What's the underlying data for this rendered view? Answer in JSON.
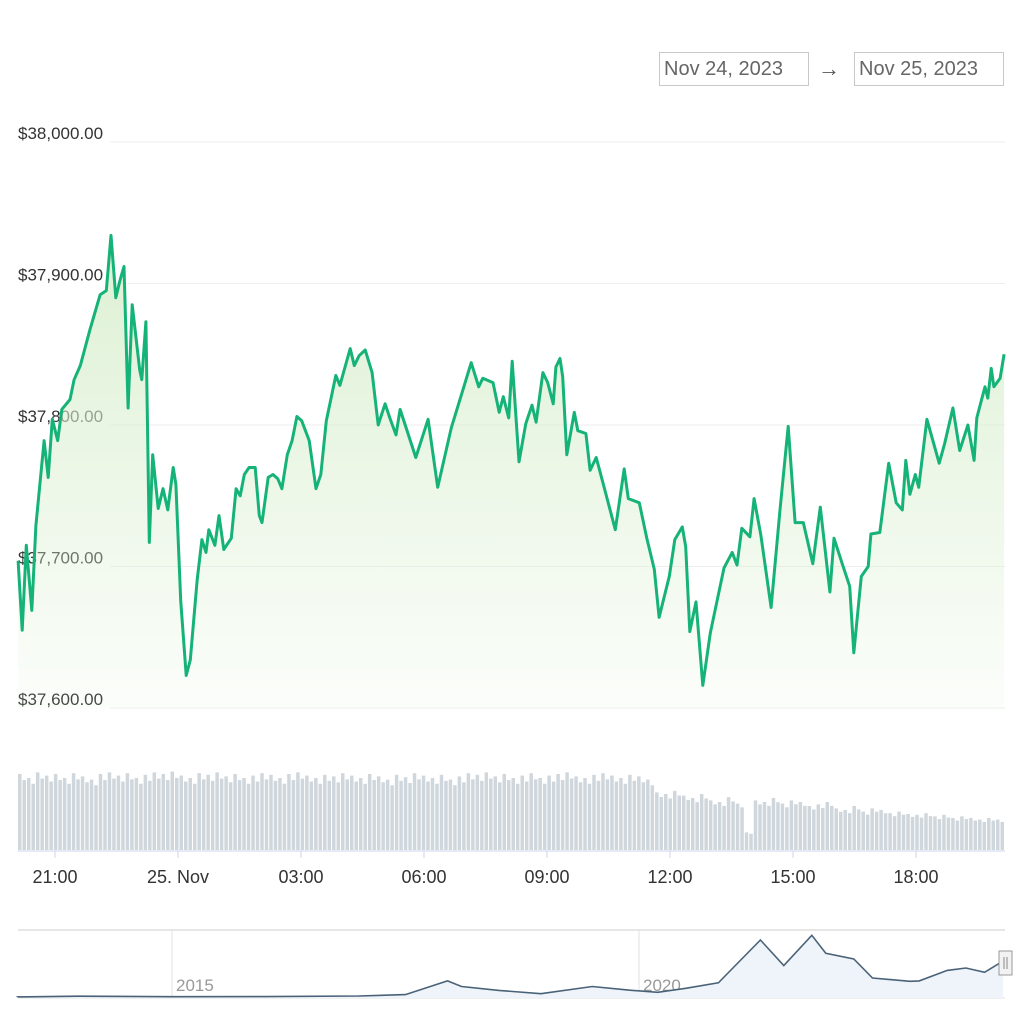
{
  "date_range": {
    "from": "Nov 24, 2023",
    "separator": "→",
    "to": "Nov 25, 2023"
  },
  "colors": {
    "line": "#16b378",
    "area_top": "#d9efcf",
    "volume": "#cfd6dc",
    "navigator_line": "#4a6278",
    "navigator_fill": "#eef4f9"
  },
  "chart_data": {
    "type": "line",
    "title": "",
    "xlabel": "",
    "ylabel": "",
    "ylim": [
      37600,
      38000
    ],
    "grid": true,
    "y_ticks": [
      "$37,600.00",
      "$37,700.00",
      "$37,800.00",
      "$37,900.00",
      "$38,000.00"
    ],
    "y_tick_values": [
      37600,
      37700,
      37800,
      37900,
      38000
    ],
    "x_ticks": [
      "21:00",
      "25. Nov",
      "03:00",
      "06:00",
      "09:00",
      "12:00",
      "15:00",
      "18:00"
    ],
    "x_tick_times": [
      "2023-11-24T21:00",
      "2023-11-25T00:00",
      "2023-11-25T03:00",
      "2023-11-25T06:00",
      "2023-11-25T09:00",
      "2023-11-25T12:00",
      "2023-11-25T15:00",
      "2023-11-25T18:00"
    ],
    "series": [
      {
        "points": [
          [
            "2023-11-24T20:06",
            37704
          ],
          [
            "2023-11-24T20:12",
            37655
          ],
          [
            "2023-11-24T20:18",
            37715
          ],
          [
            "2023-11-24T20:26",
            37669
          ],
          [
            "2023-11-24T20:32",
            37729
          ],
          [
            "2023-11-24T20:44",
            37789
          ],
          [
            "2023-11-24T20:50",
            37763
          ],
          [
            "2023-11-24T20:56",
            37804
          ],
          [
            "2023-11-24T21:04",
            37789
          ],
          [
            "2023-11-24T21:10",
            37811
          ],
          [
            "2023-11-24T21:22",
            37818
          ],
          [
            "2023-11-24T21:28",
            37832
          ],
          [
            "2023-11-24T21:37",
            37842
          ],
          [
            "2023-11-24T21:51",
            37867
          ],
          [
            "2023-11-24T22:06",
            37892
          ],
          [
            "2023-11-24T22:15",
            37895
          ],
          [
            "2023-11-24T22:22",
            37934
          ],
          [
            "2023-11-24T22:29",
            37890
          ],
          [
            "2023-11-24T22:35",
            37902
          ],
          [
            "2023-11-24T22:41",
            37912
          ],
          [
            "2023-11-24T22:47",
            37812
          ],
          [
            "2023-11-24T22:53",
            37885
          ],
          [
            "2023-11-24T23:04",
            37839
          ],
          [
            "2023-11-24T23:07",
            37832
          ],
          [
            "2023-11-24T23:13",
            37873
          ],
          [
            "2023-11-24T23:18",
            37717
          ],
          [
            "2023-11-24T23:23",
            37779
          ],
          [
            "2023-11-24T23:31",
            37741
          ],
          [
            "2023-11-24T23:38",
            37755
          ],
          [
            "2023-11-24T23:45",
            37740
          ],
          [
            "2023-11-24T23:53",
            37770
          ],
          [
            "2023-11-24T23:57",
            37758
          ],
          [
            "2023-11-25T00:04",
            37676
          ],
          [
            "2023-11-25T00:12",
            37623
          ],
          [
            "2023-11-25T00:18",
            37634
          ],
          [
            "2023-11-25T00:28",
            37690
          ],
          [
            "2023-11-25T00:35",
            37719
          ],
          [
            "2023-11-25T00:41",
            37710
          ],
          [
            "2023-11-25T00:45",
            37726
          ],
          [
            "2023-11-25T00:54",
            37715
          ],
          [
            "2023-11-25T01:00",
            37736
          ],
          [
            "2023-11-25T01:07",
            37712
          ],
          [
            "2023-11-25T01:18",
            37720
          ],
          [
            "2023-11-25T01:25",
            37755
          ],
          [
            "2023-11-25T01:31",
            37750
          ],
          [
            "2023-11-25T01:37",
            37765
          ],
          [
            "2023-11-25T01:44",
            37770
          ],
          [
            "2023-11-25T01:53",
            37770
          ],
          [
            "2023-11-25T01:59",
            37736
          ],
          [
            "2023-11-25T02:03",
            37731
          ],
          [
            "2023-11-25T02:12",
            37763
          ],
          [
            "2023-11-25T02:19",
            37765
          ],
          [
            "2023-11-25T02:26",
            37762
          ],
          [
            "2023-11-25T02:32",
            37755
          ],
          [
            "2023-11-25T02:40",
            37779
          ],
          [
            "2023-11-25T02:47",
            37789
          ],
          [
            "2023-11-25T02:54",
            37806
          ],
          [
            "2023-11-25T03:01",
            37803
          ],
          [
            "2023-11-25T03:12",
            37789
          ],
          [
            "2023-11-25T03:22",
            37755
          ],
          [
            "2023-11-25T03:29",
            37765
          ],
          [
            "2023-11-25T03:37",
            37803
          ],
          [
            "2023-11-25T03:44",
            37819
          ],
          [
            "2023-11-25T03:51",
            37835
          ],
          [
            "2023-11-25T03:57",
            37828
          ],
          [
            "2023-11-25T04:12",
            37854
          ],
          [
            "2023-11-25T04:18",
            37842
          ],
          [
            "2023-11-25T04:25",
            37849
          ],
          [
            "2023-11-25T04:34",
            37853
          ],
          [
            "2023-11-25T04:44",
            37837
          ],
          [
            "2023-11-25T04:53",
            37800
          ],
          [
            "2023-11-25T05:03",
            37815
          ],
          [
            "2023-11-25T05:10",
            37805
          ],
          [
            "2023-11-25T05:19",
            37793
          ],
          [
            "2023-11-25T05:25",
            37811
          ],
          [
            "2023-11-25T05:48",
            37777
          ],
          [
            "2023-11-25T06:06",
            37804
          ],
          [
            "2023-11-25T06:20",
            37756
          ],
          [
            "2023-11-25T06:40",
            37798
          ],
          [
            "2023-11-25T07:09",
            37844
          ],
          [
            "2023-11-25T07:20",
            37827
          ],
          [
            "2023-11-25T07:26",
            37833
          ],
          [
            "2023-11-25T07:41",
            37830
          ],
          [
            "2023-11-25T07:50",
            37809
          ],
          [
            "2023-11-25T07:56",
            37820
          ],
          [
            "2023-11-25T08:04",
            37805
          ],
          [
            "2023-11-25T08:09",
            37845
          ],
          [
            "2023-11-25T08:19",
            37774
          ],
          [
            "2023-11-25T08:29",
            37801
          ],
          [
            "2023-11-25T08:38",
            37814
          ],
          [
            "2023-11-25T08:44",
            37802
          ],
          [
            "2023-11-25T08:54",
            37837
          ],
          [
            "2023-11-25T09:01",
            37830
          ],
          [
            "2023-11-25T09:09",
            37815
          ],
          [
            "2023-11-25T09:13",
            37841
          ],
          [
            "2023-11-25T09:19",
            37847
          ],
          [
            "2023-11-25T09:23",
            37834
          ],
          [
            "2023-11-25T09:29",
            37779
          ],
          [
            "2023-11-25T09:40",
            37809
          ],
          [
            "2023-11-25T09:45",
            37796
          ],
          [
            "2023-11-25T09:57",
            37794
          ],
          [
            "2023-11-25T10:03",
            37768
          ],
          [
            "2023-11-25T10:12",
            37777
          ],
          [
            "2023-11-25T10:22",
            37759
          ],
          [
            "2023-11-25T10:40",
            37726
          ],
          [
            "2023-11-25T10:53",
            37769
          ],
          [
            "2023-11-25T10:59",
            37748
          ],
          [
            "2023-11-25T11:15",
            37745
          ],
          [
            "2023-11-25T11:26",
            37720
          ],
          [
            "2023-11-25T11:37",
            37698
          ],
          [
            "2023-11-25T11:44",
            37664
          ],
          [
            "2023-11-25T11:59",
            37693
          ],
          [
            "2023-11-25T12:07",
            37719
          ],
          [
            "2023-11-25T12:18",
            37728
          ],
          [
            "2023-11-25T12:23",
            37714
          ],
          [
            "2023-11-25T12:29",
            37654
          ],
          [
            "2023-11-25T12:38",
            37675
          ],
          [
            "2023-11-25T12:48",
            37616
          ],
          [
            "2023-11-25T12:59",
            37653
          ],
          [
            "2023-11-25T13:19",
            37699
          ],
          [
            "2023-11-25T13:31",
            37710
          ],
          [
            "2023-11-25T13:38",
            37701
          ],
          [
            "2023-11-25T13:45",
            37727
          ],
          [
            "2023-11-25T13:57",
            37721
          ],
          [
            "2023-11-25T14:03",
            37748
          ],
          [
            "2023-11-25T14:13",
            37722
          ],
          [
            "2023-11-25T14:28",
            37671
          ],
          [
            "2023-11-25T14:41",
            37740
          ],
          [
            "2023-11-25T14:53",
            37799
          ],
          [
            "2023-11-25T15:03",
            37731
          ],
          [
            "2023-11-25T15:15",
            37731
          ],
          [
            "2023-11-25T15:29",
            37702
          ],
          [
            "2023-11-25T15:40",
            37742
          ],
          [
            "2023-11-25T15:54",
            37682
          ],
          [
            "2023-11-25T16:00",
            37720
          ],
          [
            "2023-11-25T16:12",
            37702
          ],
          [
            "2023-11-25T16:23",
            37686
          ],
          [
            "2023-11-25T16:29",
            37639
          ],
          [
            "2023-11-25T16:40",
            37693
          ],
          [
            "2023-11-25T16:50",
            37700
          ],
          [
            "2023-11-25T16:54",
            37723
          ],
          [
            "2023-11-25T17:07",
            37724
          ],
          [
            "2023-11-25T17:20",
            37773
          ],
          [
            "2023-11-25T17:31",
            37745
          ],
          [
            "2023-11-25T17:40",
            37740
          ],
          [
            "2023-11-25T17:45",
            37775
          ],
          [
            "2023-11-25T17:51",
            37751
          ],
          [
            "2023-11-25T17:59",
            37765
          ],
          [
            "2023-11-25T18:04",
            37756
          ],
          [
            "2023-11-25T18:16",
            37804
          ],
          [
            "2023-11-25T18:34",
            37773
          ],
          [
            "2023-11-25T18:42",
            37787
          ],
          [
            "2023-11-25T18:54",
            37812
          ],
          [
            "2023-11-25T19:04",
            37782
          ],
          [
            "2023-11-25T19:16",
            37800
          ],
          [
            "2023-11-25T19:25",
            37775
          ],
          [
            "2023-11-25T19:29",
            37805
          ],
          [
            "2023-11-25T19:41",
            37827
          ],
          [
            "2023-11-25T19:45",
            37819
          ],
          [
            "2023-11-25T19:50",
            37840
          ],
          [
            "2023-11-25T19:54",
            37827
          ],
          [
            "2023-11-25T20:03",
            37833
          ],
          [
            "2023-11-25T20:09",
            37850
          ]
        ]
      }
    ],
    "volume_relative": [
      0.95,
      0.9,
      0.97,
      0.93,
      0.95,
      0.9,
      0.96,
      0.92,
      0.88,
      0.95,
      0.97,
      0.93,
      0.96,
      0.9,
      0.94,
      0.97,
      0.95,
      0.98,
      0.93,
      0.9,
      0.96,
      0.94,
      0.97,
      0.92,
      0.95,
      0.9,
      0.93,
      0.96,
      0.94,
      0.9,
      0.95,
      0.97,
      0.93,
      0.9,
      0.94,
      0.92,
      0.96,
      0.93,
      0.9,
      0.95,
      0.92,
      0.88,
      0.94,
      0.91,
      0.96,
      0.93,
      0.9,
      0.94,
      0.88,
      0.92,
      0.96,
      0.94,
      0.97,
      0.92,
      0.95,
      0.9,
      0.93,
      0.96,
      0.9,
      0.93,
      0.95,
      0.97,
      0.92,
      0.9,
      0.94,
      0.96,
      0.93,
      0.9,
      0.94,
      0.92,
      0.88,
      0.72,
      0.7,
      0.74,
      0.68,
      0.65,
      0.7,
      0.62,
      0.6,
      0.66,
      0.58,
      0.22,
      0.62,
      0.6,
      0.65,
      0.58,
      0.62,
      0.6,
      0.55,
      0.57,
      0.6,
      0.52,
      0.5,
      0.55,
      0.48,
      0.52,
      0.5,
      0.46,
      0.48,
      0.45,
      0.44,
      0.46,
      0.42,
      0.44,
      0.4,
      0.42,
      0.4,
      0.38,
      0.4,
      0.38
    ],
    "navigator": {
      "x_ticks": [
        "2015",
        "2020"
      ],
      "points": [
        [
          2013.35,
          100
        ],
        [
          2014.0,
          800
        ],
        [
          2015.0,
          300
        ],
        [
          2016.0,
          430
        ],
        [
          2017.0,
          1000
        ],
        [
          2017.5,
          2500
        ],
        [
          2017.95,
          17000
        ],
        [
          2018.1,
          11000
        ],
        [
          2018.5,
          7000
        ],
        [
          2018.95,
          3500
        ],
        [
          2019.5,
          11000
        ],
        [
          2019.9,
          7200
        ],
        [
          2020.2,
          5000
        ],
        [
          2020.5,
          9200
        ],
        [
          2020.85,
          15000
        ],
        [
          2021.0,
          30000
        ],
        [
          2021.3,
          60000
        ],
        [
          2021.55,
          33000
        ],
        [
          2021.85,
          65000
        ],
        [
          2022.0,
          46000
        ],
        [
          2022.3,
          40000
        ],
        [
          2022.5,
          20000
        ],
        [
          2022.9,
          16500
        ],
        [
          2023.0,
          17000
        ],
        [
          2023.3,
          28000
        ],
        [
          2023.5,
          30500
        ],
        [
          2023.7,
          26000
        ],
        [
          2023.9,
          37800
        ]
      ]
    }
  }
}
